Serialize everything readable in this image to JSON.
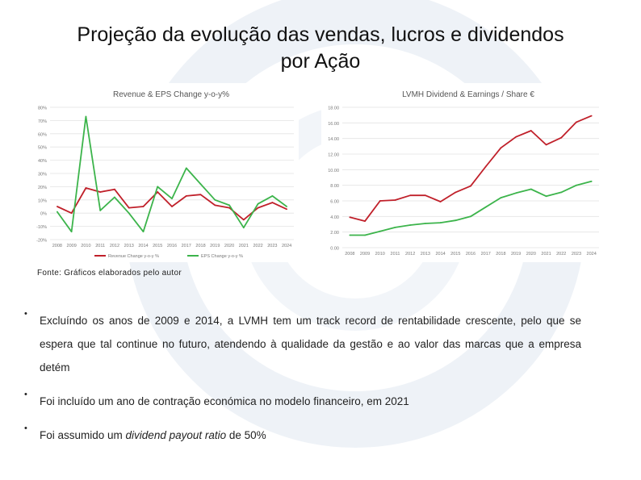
{
  "slide": {
    "title_line1": "Projeção da evolução das vendas, lucros e dividendos",
    "title_line2": "por Ação",
    "source": "Fonte: Gráficos elaborados pelo autor",
    "bullets": [
      {
        "text": "Excluíndo os anos de 2009 e 2014, a LVMH tem um track record de rentabilidade crescente, pelo que se espera que tal continue no futuro, atendendo à qualidade da gestão e ao valor das marcas que a empresa detém"
      },
      {
        "text": "Foi incluído um ano de contração económica no modelo financeiro, em 2021"
      },
      {
        "prefix": "Foi assumido um ",
        "emphasis": "dividend payout ratio",
        "suffix": " de 50%"
      }
    ],
    "bullet_symbol": "•"
  },
  "colors": {
    "red": "#c0202a",
    "green": "#3cb44b",
    "grid": "#e3e3e3",
    "axis_text": "#777777"
  },
  "chart_data": [
    {
      "type": "line",
      "title": "Revenue & EPS Change y-o-y%",
      "x": [
        "2008",
        "2009",
        "2010",
        "2011",
        "2012",
        "2013",
        "2014",
        "2015",
        "2016",
        "2017",
        "2018",
        "2019",
        "2020",
        "2021",
        "2022",
        "2023",
        "2024"
      ],
      "y_ticks": [
        "-20%",
        "-10%",
        "0%",
        "10%",
        "20%",
        "30%",
        "40%",
        "50%",
        "60%",
        "70%",
        "80%"
      ],
      "ylim": [
        -20,
        80
      ],
      "grid": true,
      "legend": "bottom",
      "series": [
        {
          "name": "Revenue Change y-o-y %",
          "color": "#c0202a",
          "values": [
            5,
            0,
            19,
            16,
            18,
            4,
            5,
            16,
            5,
            13,
            14,
            6,
            4,
            -5,
            4,
            8,
            3
          ]
        },
        {
          "name": "EPS Change y-o-y %",
          "color": "#3cb44b",
          "values": [
            1,
            -14,
            73,
            2,
            12,
            0,
            -14,
            20,
            11,
            34,
            22,
            10,
            6,
            -11,
            7,
            13,
            5
          ]
        }
      ]
    },
    {
      "type": "line",
      "title": "LVMH Dividend & Earnings / Share €",
      "x": [
        "2008",
        "2009",
        "2010",
        "2011",
        "2012",
        "2013",
        "2014",
        "2015",
        "2016",
        "2017",
        "2018",
        "2019",
        "2020",
        "2021",
        "2022",
        "2023",
        "2024"
      ],
      "y_ticks": [
        "0.00",
        "2.00",
        "4.00",
        "6.00",
        "8.00",
        "10.00",
        "12.00",
        "14.00",
        "16.00",
        "18.00"
      ],
      "ylim": [
        0,
        18
      ],
      "grid": true,
      "legend": "none",
      "series": [
        {
          "color": "#c0202a",
          "values": [
            3.9,
            3.4,
            6.0,
            6.1,
            6.7,
            6.7,
            5.9,
            7.1,
            7.9,
            10.4,
            12.8,
            14.2,
            15.0,
            13.2,
            14.1,
            16.1,
            16.9
          ]
        },
        {
          "color": "#3cb44b",
          "values": [
            1.6,
            1.6,
            2.1,
            2.6,
            2.9,
            3.1,
            3.2,
            3.5,
            4.0,
            5.2,
            6.4,
            7.0,
            7.5,
            6.6,
            7.1,
            8.0,
            8.5
          ]
        }
      ]
    }
  ]
}
